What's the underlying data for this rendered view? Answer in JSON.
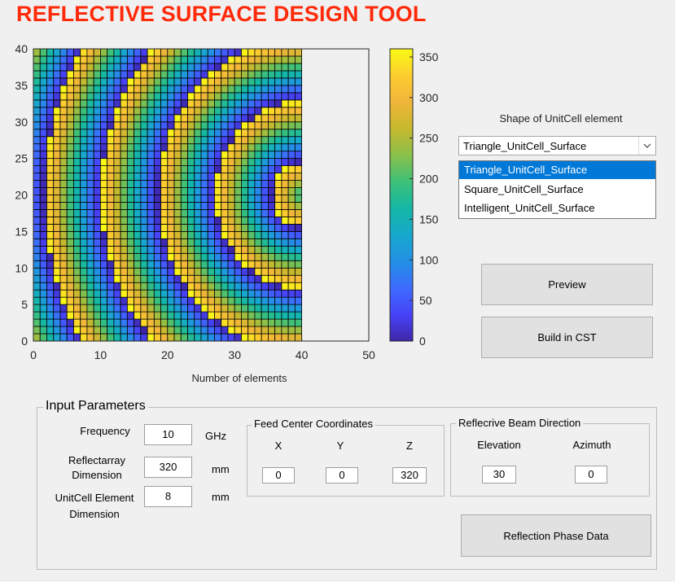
{
  "app": {
    "title": "REFLECTIVE SURFACE DESIGN TOOL"
  },
  "chart_data": {
    "type": "heatmap",
    "description_source": "reflection phase per unit cell",
    "grid": {
      "x_cells": 40,
      "y_cells": 40,
      "x_extent": [
        0,
        40
      ],
      "y_extent": [
        0,
        40
      ]
    },
    "phase_model": {
      "center": [
        40,
        20
      ],
      "period": 8.5,
      "offset": 4.1,
      "units": "degrees",
      "range": [
        0,
        360
      ]
    },
    "xlim": [
      0,
      50
    ],
    "ylim": [
      0,
      40
    ],
    "xticks": [
      0,
      10,
      20,
      30,
      40,
      50
    ],
    "yticks": [
      0,
      5,
      10,
      15,
      20,
      25,
      30,
      35,
      40
    ],
    "xlabel": "Number of elements",
    "ylabel": "",
    "colorbar": {
      "ticks": [
        0,
        50,
        100,
        150,
        200,
        250,
        300,
        350
      ],
      "range": [
        0,
        360
      ],
      "colormap": [
        "#3e26a8",
        "#4743f8",
        "#3d6bfe",
        "#2290e5",
        "#17a8cd",
        "#14b8a5",
        "#3ec078",
        "#8ac04a",
        "#c6b92e",
        "#f0b53a",
        "#fccd2f",
        "#f9fb15"
      ]
    },
    "grid_lines": true
  },
  "shape": {
    "label": "Shape of UnitCell element",
    "selected": "Triangle_UnitCell_Surface",
    "options": [
      "Triangle_UnitCell_Surface",
      "Square_UnitCell_Surface",
      "Intelligent_UnitCell_Surface"
    ],
    "highlighted_index": 0
  },
  "buttons": {
    "preview": "Preview",
    "build": "Build in CST",
    "reflection": "Reflection Phase Data"
  },
  "inputs": {
    "title": "Input Parameters",
    "frequency": {
      "label": "Frequency",
      "value": "10",
      "unit": "GHz"
    },
    "reflectarray": {
      "label_line1": "Reflectarray",
      "label_line2": "Dimension",
      "value": "320",
      "unit": "mm"
    },
    "unitcell": {
      "label_line1": "UnitCell Element",
      "label_line2": "Dimension",
      "value": "8",
      "unit": "mm"
    }
  },
  "feed": {
    "title": "Feed Center Coordinates",
    "x_label": "X",
    "y_label": "Y",
    "z_label": "Z",
    "x": "0",
    "y": "0",
    "z": "320"
  },
  "beam": {
    "title": "Reflecrive Beam Direction",
    "elev_label": "Elevation",
    "az_label": "Azimuth",
    "elevation": "30",
    "azimuth": "0"
  }
}
